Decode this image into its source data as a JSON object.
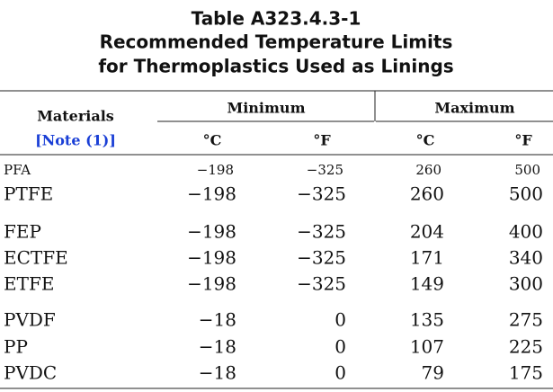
{
  "title": [
    "Table A323.4.3-1",
    "Recommended Temperature Limits",
    "for Thermoplastics Used as Linings"
  ],
  "header": {
    "materials": "Materials",
    "note": "[Note (1)]",
    "minimum": "Minimum",
    "maximum": "Maximum",
    "units": [
      "°C",
      "°F",
      "°C",
      "°F"
    ]
  },
  "table": {
    "groups": [
      [
        [
          "PFA",
          "−198",
          "−325",
          "260",
          "500"
        ],
        [
          "PTFE",
          "−198",
          "−325",
          "260",
          "500"
        ]
      ],
      [
        [
          "FEP",
          "−198",
          "−325",
          "204",
          "400"
        ],
        [
          "ECTFE",
          "−198",
          "−325",
          "171",
          "340"
        ],
        [
          "ETFE",
          "−198",
          "−325",
          "149",
          "300"
        ]
      ],
      [
        [
          "PVDF",
          "−18",
          "0",
          "135",
          "275"
        ],
        [
          "PP",
          "−18",
          "0",
          "107",
          "225"
        ],
        [
          "PVDC",
          "−18",
          "0",
          "79",
          "175"
        ]
      ]
    ]
  }
}
